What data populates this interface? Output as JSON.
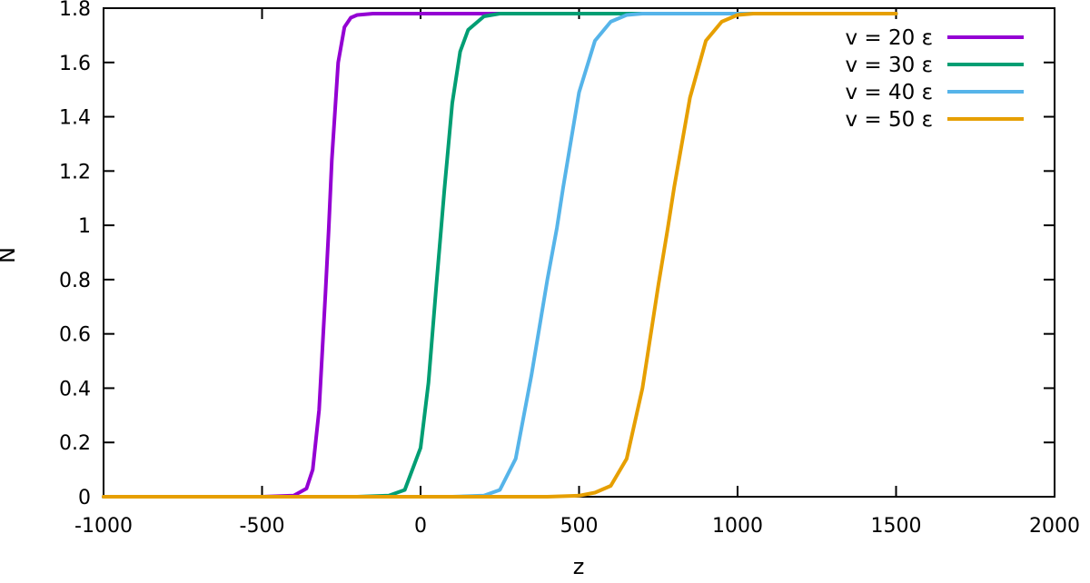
{
  "chart_data": {
    "type": "line",
    "xlabel": "z",
    "ylabel": "N",
    "xlim": [
      -1000,
      2000
    ],
    "ylim": [
      0,
      1.8
    ],
    "x_ticks": [
      "-1000",
      "-500",
      "0",
      "500",
      "1000",
      "1500",
      "2000"
    ],
    "y_ticks": [
      "0",
      "0.2",
      "0.4",
      "0.6",
      "0.8",
      "1",
      "1.2",
      "1.4",
      "1.6",
      "1.8"
    ],
    "grid": false,
    "legend_position": "top-right",
    "series": [
      {
        "name": "v = 20 ε",
        "color": "#9400d3",
        "x": [
          -1000,
          -500,
          -400,
          -360,
          -340,
          -320,
          -300,
          -290,
          -280,
          -260,
          -240,
          -220,
          -200,
          -150,
          0,
          500,
          1000,
          1500
        ],
        "y": [
          0,
          0,
          0.004,
          0.03,
          0.1,
          0.32,
          0.75,
          0.98,
          1.24,
          1.6,
          1.73,
          1.765,
          1.775,
          1.78,
          1.78,
          1.78,
          1.78,
          1.78
        ]
      },
      {
        "name": "v = 30 ε",
        "color": "#009e73",
        "x": [
          -1000,
          -200,
          -100,
          -50,
          0,
          25,
          50,
          65,
          75,
          100,
          125,
          150,
          200,
          250,
          500,
          1000,
          1500
        ],
        "y": [
          0,
          0,
          0.004,
          0.025,
          0.18,
          0.42,
          0.78,
          0.99,
          1.13,
          1.45,
          1.64,
          1.72,
          1.77,
          1.78,
          1.78,
          1.78,
          1.78
        ]
      },
      {
        "name": "v = 40 ε",
        "color": "#56b4e9",
        "x": [
          -1000,
          100,
          200,
          250,
          300,
          350,
          400,
          430,
          450,
          500,
          550,
          600,
          650,
          700,
          1000,
          1500
        ],
        "y": [
          0,
          0,
          0.004,
          0.025,
          0.14,
          0.45,
          0.8,
          0.99,
          1.14,
          1.49,
          1.68,
          1.75,
          1.775,
          1.78,
          1.78,
          1.78
        ]
      },
      {
        "name": "v = 50 ε",
        "color": "#e69f00",
        "x": [
          -1000,
          400,
          500,
          550,
          600,
          650,
          700,
          750,
          780,
          800,
          850,
          900,
          950,
          1000,
          1050,
          1500
        ],
        "y": [
          0,
          0,
          0.004,
          0.015,
          0.04,
          0.14,
          0.4,
          0.78,
          0.99,
          1.14,
          1.47,
          1.68,
          1.75,
          1.775,
          1.78,
          1.78
        ]
      }
    ]
  }
}
